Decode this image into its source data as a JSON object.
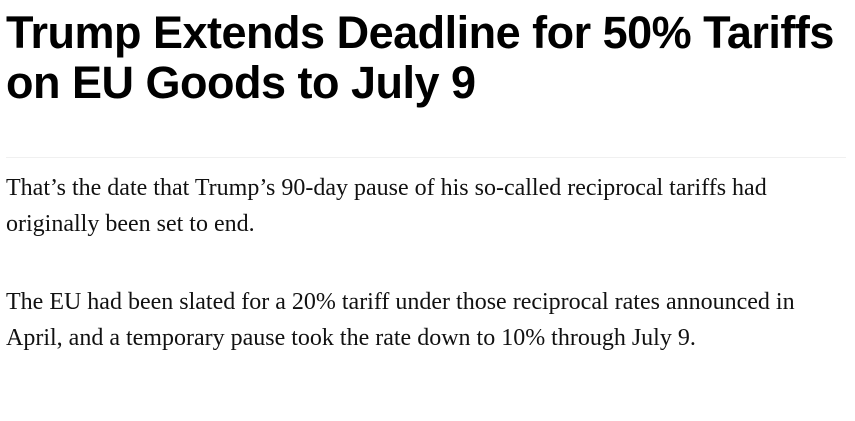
{
  "article": {
    "headline": "Trump Extends Deadline for 50% Tariffs on EU Goods to July 9",
    "paragraphs": [
      "That’s the date that Trump’s 90-day pause of his so-called reciprocal tariffs had originally been set to end.",
      "The EU had been slated for a 20% tariff under those reciprocal rates announced in April, and a temporary pause took the rate down to 10% through July 9."
    ]
  }
}
